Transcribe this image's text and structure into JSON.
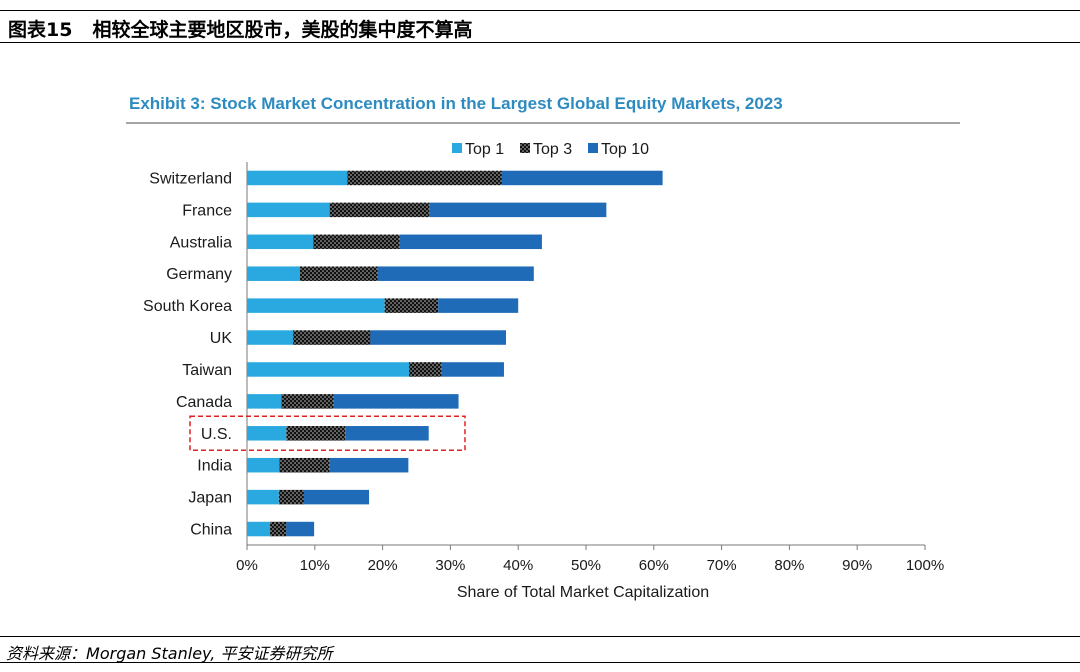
{
  "figure": {
    "label": "图表15",
    "caption": "相较全球主要地区股市，美股的集中度不算高"
  },
  "source": {
    "prefix": "资料来源：",
    "text": "Morgan Stanley,  平安证券研究所"
  },
  "colors": {
    "top1": "#2aa9e0",
    "top3_bg": "#111111",
    "top3_dot": "#cfcfcf",
    "top10": "#1f6bb8",
    "title": "#2e8bc0",
    "highlight": "#e02020"
  },
  "chart_data": {
    "type": "bar",
    "orientation": "horizontal",
    "stacked": true,
    "title": "Exhibit 3: Stock Market Concentration in the Largest Global Equity Markets, 2023",
    "xlabel": "Share of Total Market Capitalization",
    "ylabel": "",
    "xlim": [
      0,
      100
    ],
    "xticks": [
      "0%",
      "10%",
      "20%",
      "30%",
      "40%",
      "50%",
      "60%",
      "70%",
      "80%",
      "90%",
      "100%"
    ],
    "legend_position": "top",
    "categories": [
      "Switzerland",
      "France",
      "Australia",
      "Germany",
      "South Korea",
      "UK",
      "Taiwan",
      "Canada",
      "U.S.",
      "India",
      "Japan",
      "China"
    ],
    "series": [
      {
        "name": "Top 1",
        "cumulative": [
          14.8,
          12.2,
          9.8,
          7.8,
          20.3,
          6.8,
          23.9,
          5.1,
          5.8,
          4.8,
          4.7,
          3.4
        ]
      },
      {
        "name": "Top 3",
        "cumulative": [
          37.6,
          26.9,
          22.5,
          19.3,
          28.2,
          18.2,
          28.7,
          12.8,
          14.5,
          12.2,
          8.4,
          5.8
        ]
      },
      {
        "name": "Top 10",
        "cumulative": [
          61.3,
          53.0,
          43.5,
          42.3,
          40.0,
          38.2,
          37.9,
          31.2,
          26.8,
          23.8,
          18.0,
          9.9
        ]
      }
    ],
    "highlighted_category": "U.S."
  }
}
